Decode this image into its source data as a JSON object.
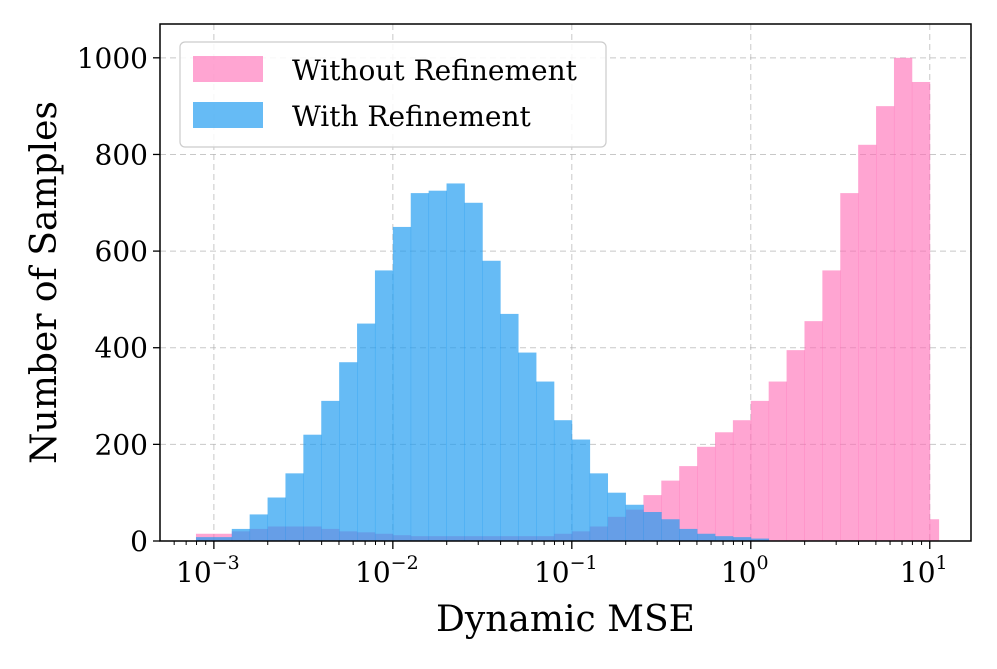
{
  "chart_data": {
    "type": "histogram",
    "xscale": "log",
    "xlim": [
      0.0005,
      17
    ],
    "ylim": [
      0,
      1070
    ],
    "xlabel": "Dynamic MSE",
    "ylabel": "Number of Samples",
    "grid": true,
    "legend_position": "top-left",
    "x_ticks": [
      {
        "value": 0.001,
        "base": "10",
        "exp": "−3"
      },
      {
        "value": 0.01,
        "base": "10",
        "exp": "−2"
      },
      {
        "value": 0.1,
        "base": "10",
        "exp": "−1"
      },
      {
        "value": 1,
        "base": "10",
        "exp": "0"
      },
      {
        "value": 10,
        "base": "10",
        "exp": "1"
      }
    ],
    "y_ticks": [
      0,
      200,
      400,
      600,
      800,
      1000
    ],
    "bin_edges_log10": [
      -3.1,
      -2.9,
      -2.8,
      -2.7,
      -2.6,
      -2.5,
      -2.4,
      -2.3,
      -2.2,
      -2.1,
      -2.0,
      -1.9,
      -1.8,
      -1.7,
      -1.6,
      -1.5,
      -1.4,
      -1.3,
      -1.2,
      -1.1,
      -1.0,
      -0.9,
      -0.8,
      -0.7,
      -0.6,
      -0.5,
      -0.4,
      -0.3,
      -0.2,
      -0.1,
      0.0,
      0.1,
      0.2,
      0.3,
      0.4,
      0.5,
      0.6,
      0.7,
      0.8,
      0.9,
      1.0,
      1.05
    ],
    "series": [
      {
        "name": "Without Refinement",
        "color": "#ff69b4",
        "opacity": 0.6,
        "values": [
          15,
          20,
          25,
          30,
          30,
          30,
          25,
          20,
          18,
          15,
          12,
          10,
          10,
          10,
          10,
          10,
          10,
          10,
          10,
          15,
          20,
          30,
          50,
          65,
          95,
          125,
          155,
          195,
          225,
          250,
          290,
          330,
          395,
          455,
          560,
          720,
          820,
          900,
          1000,
          950,
          45
        ]
      },
      {
        "name": "With Refinement",
        "color": "#1e9bf0",
        "opacity": 0.68,
        "values": [
          8,
          25,
          55,
          90,
          140,
          220,
          290,
          370,
          450,
          560,
          650,
          720,
          725,
          740,
          700,
          580,
          470,
          390,
          330,
          250,
          210,
          140,
          100,
          75,
          60,
          45,
          25,
          15,
          10,
          8,
          5,
          0,
          0,
          0,
          0,
          0,
          0,
          0,
          0,
          0,
          0
        ]
      }
    ]
  }
}
